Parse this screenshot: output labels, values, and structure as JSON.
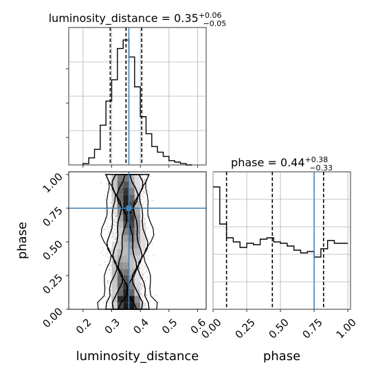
{
  "chart_data": {
    "type": "corner",
    "parameters": [
      "luminosity_distance",
      "phase"
    ],
    "truth": {
      "luminosity_distance": 0.36,
      "phase": 0.75,
      "color": "#4682b4"
    },
    "panels": [
      {
        "id": "ld_hist",
        "type": "histogram",
        "title": {
          "prefix": "luminosity_distance = 0.35",
          "plus": "+0.06",
          "minus": "−0.05"
        },
        "xlim": [
          0.15,
          0.63
        ],
        "grid": true,
        "bin_edges": [
          0.2,
          0.22,
          0.24,
          0.26,
          0.28,
          0.3,
          0.32,
          0.34,
          0.36,
          0.38,
          0.4,
          0.42,
          0.44,
          0.46,
          0.48,
          0.5,
          0.52,
          0.54,
          0.56,
          0.58
        ],
        "counts": [
          1,
          5,
          11,
          28,
          45,
          60,
          82,
          88,
          76,
          55,
          34,
          22,
          13,
          9,
          6,
          3,
          2,
          1,
          0
        ],
        "quantile_lines": [
          0.295,
          0.35,
          0.405
        ]
      },
      {
        "id": "ld_phase_2d",
        "type": "2d-density",
        "xlim": [
          0.15,
          0.63
        ],
        "ylim": [
          0.0,
          1.02
        ],
        "xticks": [
          "0.2",
          "0.3",
          "0.4",
          "0.5",
          "0.6"
        ],
        "yticks": [
          "0.00",
          "0.25",
          "0.50",
          "0.75",
          "1.00"
        ],
        "xlabel": "luminosity_distance",
        "ylabel": "phase"
      },
      {
        "id": "phase_hist",
        "type": "histogram",
        "title": {
          "prefix": "phase = 0.44",
          "plus": "+0.38",
          "minus": "−0.33"
        },
        "xlim": [
          0.0,
          1.02
        ],
        "grid": true,
        "xticks": [
          "0.00",
          "0.25",
          "0.50",
          "0.75",
          "1.00"
        ],
        "xlabel": "phase",
        "bin_edges": [
          0.0,
          0.05,
          0.1,
          0.15,
          0.2,
          0.25,
          0.3,
          0.35,
          0.4,
          0.45,
          0.5,
          0.55,
          0.6,
          0.65,
          0.7,
          0.75,
          0.8,
          0.85,
          0.9,
          0.95,
          1.0
        ],
        "counts": [
          89,
          62,
          52,
          49,
          45,
          48,
          47,
          51,
          52,
          49,
          48,
          46,
          43,
          41,
          42,
          38,
          44,
          50,
          48,
          48
        ],
        "quantile_lines": [
          0.1,
          0.44,
          0.82
        ]
      }
    ]
  }
}
